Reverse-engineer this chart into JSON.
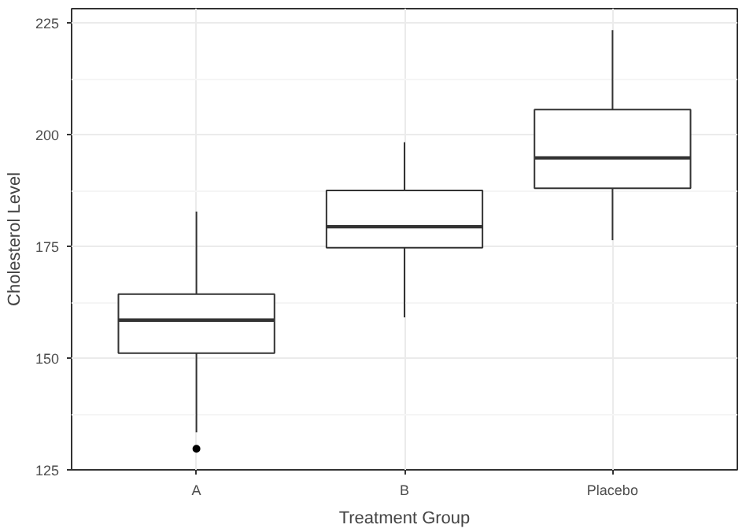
{
  "chart_data": {
    "type": "box",
    "xlabel": "Treatment Group",
    "ylabel": "Cholesterol Level",
    "categories": [
      "A",
      "B",
      "Placebo"
    ],
    "boxes": [
      {
        "low": 133.4,
        "q1": 151.1,
        "median": 158.5,
        "q3": 164.3,
        "high": 182.8,
        "outliers": [
          129.7
        ]
      },
      {
        "low": 159.1,
        "q1": 174.7,
        "median": 179.4,
        "q3": 187.5,
        "high": 198.3
      },
      {
        "low": 176.4,
        "q1": 188.0,
        "median": 194.8,
        "q3": 205.6,
        "high": 223.4
      }
    ],
    "ylim": [
      125,
      228.2
    ],
    "yticks": [
      125,
      150,
      175,
      200,
      225
    ],
    "grid": true
  }
}
